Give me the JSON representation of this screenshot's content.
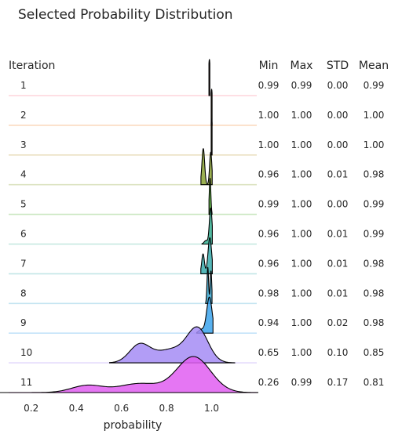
{
  "chart_data": {
    "type": "ridgeline",
    "title": "Selected Probability Distribution",
    "row_header": "Iteration",
    "xlabel": "probability",
    "xlim": [
      0.1,
      1.2
    ],
    "xticks": [
      0.2,
      0.4,
      0.6,
      0.8,
      1.0
    ],
    "xtick_labels": [
      "0.2",
      "0.4",
      "0.6",
      "0.8",
      "1.0"
    ],
    "stat_headers": [
      "Min",
      "Max",
      "STD",
      "Mean"
    ],
    "rows": [
      {
        "label": "1",
        "color": "#f77189",
        "min": "0.99",
        "max": "0.99",
        "std": "0.00",
        "mean": "0.99",
        "range": [
          0.99,
          0.99
        ],
        "peaks": [
          [
            0.99,
            0.004,
            1.0
          ]
        ]
      },
      {
        "label": "2",
        "color": "#f08430",
        "min": "1.00",
        "max": "1.00",
        "std": "0.00",
        "mean": "1.00",
        "range": [
          1.0,
          1.0
        ],
        "peaks": [
          [
            1.0,
            0.004,
            1.0
          ]
        ]
      },
      {
        "label": "3",
        "color": "#bb9832",
        "min": "1.00",
        "max": "1.00",
        "std": "0.00",
        "mean": "1.00",
        "range": [
          1.0,
          1.0
        ],
        "peaks": [
          [
            1.0,
            0.004,
            1.0
          ]
        ]
      },
      {
        "label": "4",
        "color": "#8aa232",
        "min": "0.96",
        "max": "1.00",
        "std": "0.01",
        "mean": "0.98",
        "range": [
          0.955,
          1.0
        ],
        "peaks": [
          [
            0.963,
            0.006,
            1.0
          ],
          [
            0.996,
            0.005,
            0.9
          ]
        ]
      },
      {
        "label": "5",
        "color": "#50b131",
        "min": "0.99",
        "max": "1.00",
        "std": "0.00",
        "mean": "0.99",
        "range": [
          0.99,
          1.0
        ],
        "peaks": [
          [
            0.993,
            0.0035,
            1.0
          ]
        ]
      },
      {
        "label": "6",
        "color": "#34ae91",
        "min": "0.96",
        "max": "1.00",
        "std": "0.01",
        "mean": "0.99",
        "range": [
          0.96,
          1.0
        ],
        "peaks": [
          [
            0.996,
            0.006,
            1.0
          ],
          [
            0.975,
            0.008,
            0.1
          ]
        ]
      },
      {
        "label": "7",
        "color": "#37aaac",
        "min": "0.96",
        "max": "1.00",
        "std": "0.01",
        "mean": "0.98",
        "range": [
          0.955,
          1.0
        ],
        "peaks": [
          [
            0.992,
            0.008,
            1.0
          ],
          [
            0.962,
            0.006,
            0.55
          ]
        ]
      },
      {
        "label": "8",
        "color": "#38a7d0",
        "min": "0.98",
        "max": "1.00",
        "std": "0.01",
        "mean": "0.98",
        "range": [
          0.975,
          1.0
        ],
        "peaks": [
          [
            0.983,
            0.0035,
            1.0
          ],
          [
            0.997,
            0.0035,
            0.9
          ]
        ]
      },
      {
        "label": "9",
        "color": "#3ba3ec",
        "min": "0.94",
        "max": "1.00",
        "std": "0.02",
        "mean": "0.98",
        "range": [
          0.94,
          1.0
        ],
        "peaks": [
          [
            0.99,
            0.012,
            1.0
          ],
          [
            0.955,
            0.012,
            0.1
          ]
        ]
      },
      {
        "label": "10",
        "color": "#a48cf4",
        "min": "0.65",
        "max": "1.00",
        "std": "0.10",
        "mean": "0.85",
        "range": [
          0.57,
          1.08
        ],
        "peaks": [
          [
            0.94,
            0.045,
            1.0
          ],
          [
            0.68,
            0.045,
            0.56
          ],
          [
            0.83,
            0.08,
            0.45
          ]
        ]
      },
      {
        "label": "11",
        "color": "#e15ef1",
        "min": "0.26",
        "max": "0.99",
        "std": "0.17",
        "mean": "0.81",
        "range": [
          0.09,
          1.17
        ],
        "peaks": [
          [
            0.92,
            0.075,
            1.0
          ],
          [
            0.45,
            0.07,
            0.2
          ],
          [
            0.68,
            0.09,
            0.25
          ]
        ]
      }
    ]
  }
}
